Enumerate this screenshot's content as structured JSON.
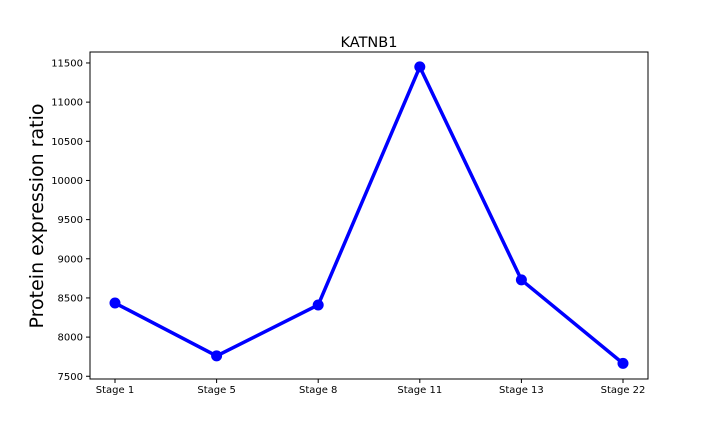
{
  "chart_data": {
    "type": "line",
    "title": "KATNB1",
    "xlabel": "",
    "ylabel": "Protein expression ratio",
    "categories": [
      "Stage 1",
      "Stage 5",
      "Stage 8",
      "Stage 11",
      "Stage 13",
      "Stage 22"
    ],
    "series": [
      {
        "values": [
          8435,
          7760,
          8410,
          11450,
          8730,
          7665
        ],
        "color": "#0000ff",
        "marker": "circle"
      }
    ],
    "yticks": [
      7500,
      8000,
      8500,
      9000,
      9500,
      10000,
      10500,
      11000,
      11500
    ],
    "ylim": [
      7465,
      11640
    ],
    "grid": false,
    "legend": "none"
  }
}
